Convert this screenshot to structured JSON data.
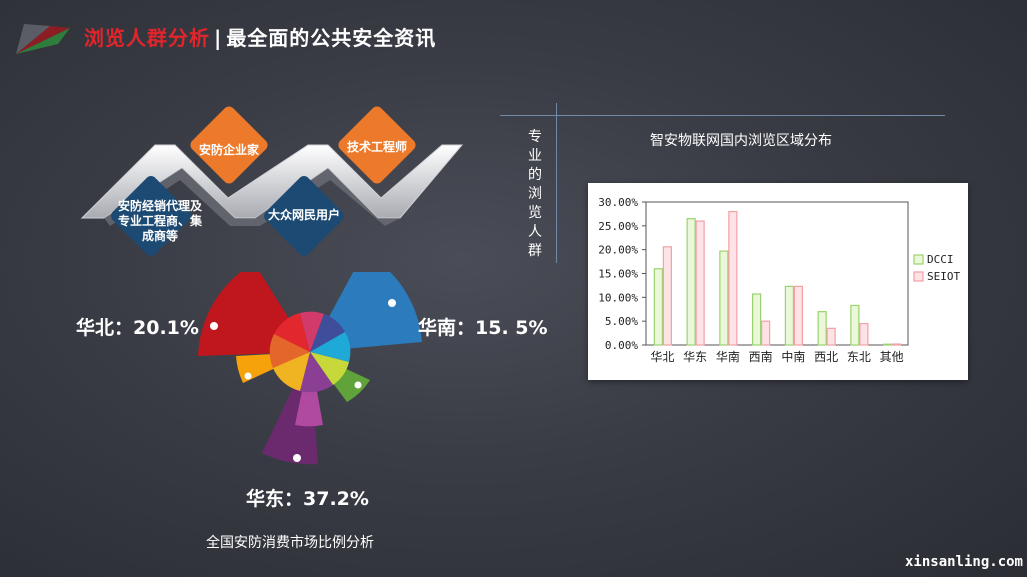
{
  "header": {
    "title_red": "浏览人群分析",
    "separator": "|",
    "title_white": "最全面的公共安全资讯"
  },
  "audience": {
    "items": [
      {
        "label": "安防企业家",
        "color": "#ec7a2a"
      },
      {
        "label": "技术工程师",
        "color": "#ec7a2a"
      },
      {
        "label": "安防经销代理及专业工程商、集成商等",
        "color": "#1d4a73"
      },
      {
        "label": "大众网民用户",
        "color": "#1d4a73"
      }
    ]
  },
  "region_share": {
    "north": "华北：20.1%",
    "south": "华南：15. 5%",
    "east": "华东：37.2%",
    "caption": "全国安防消费市场比例分析"
  },
  "side_label": "专业的浏览人群",
  "chart_title": "智安物联网国内浏览区域分布",
  "chart_data": {
    "type": "bar",
    "title": "",
    "categories": [
      "华北",
      "华东",
      "华南",
      "西南",
      "中南",
      "西北",
      "东北",
      "其他"
    ],
    "series": [
      {
        "name": "DCCI",
        "color": "#9bd36f",
        "values": [
          16.0,
          26.5,
          19.7,
          10.7,
          12.3,
          7.0,
          8.3,
          0
        ]
      },
      {
        "name": "SEIOT",
        "color": "#f3a0a6",
        "values": [
          20.6,
          26.0,
          28.0,
          5.0,
          12.3,
          3.5,
          4.5,
          0.2
        ]
      }
    ],
    "ytick_labels": [
      "0.00%",
      "5.00%",
      "10.00%",
      "15.00%",
      "20.00%",
      "25.00%",
      "30.00%"
    ],
    "ylim": [
      0,
      30
    ],
    "xlabel": "",
    "ylabel": "",
    "grid": false,
    "legend_position": "right"
  },
  "watermark": "xinsanling.com"
}
